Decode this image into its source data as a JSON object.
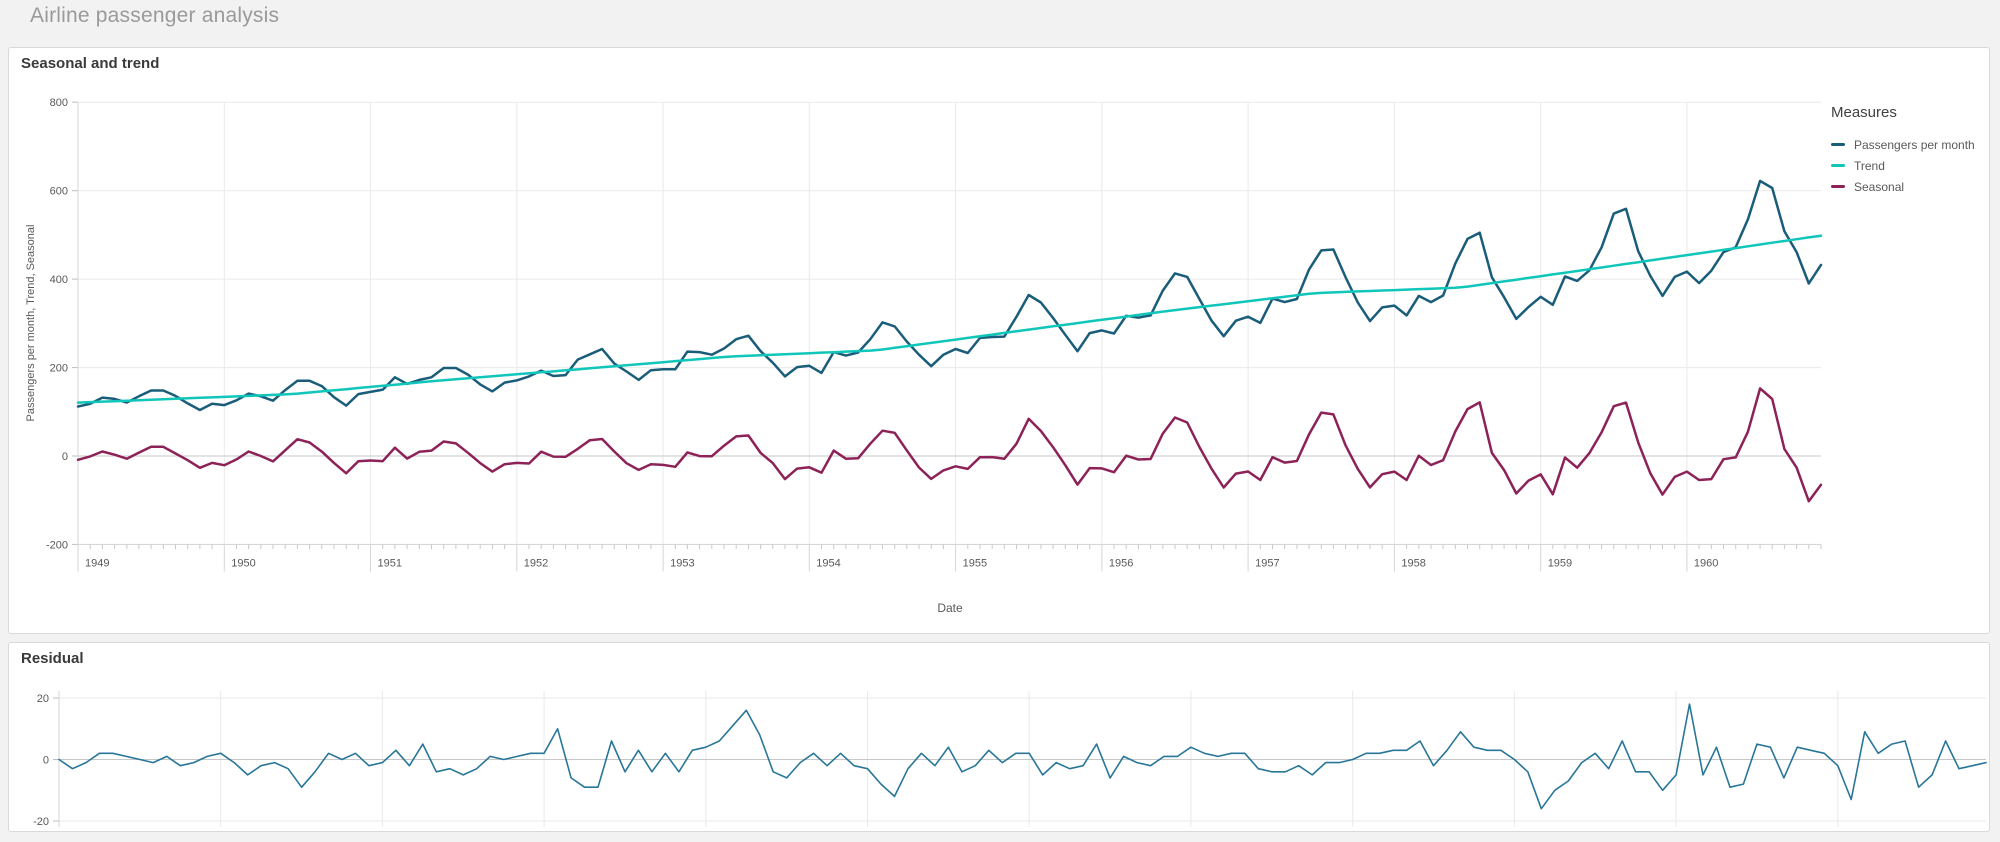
{
  "page": {
    "title": "Airline passenger analysis",
    "background": "#f2f2f2"
  },
  "chart_data": [
    {
      "type": "line",
      "title": "Seasonal and trend",
      "xlabel": "Date",
      "ylabel": "Passengers per month, Trend, Seasonal",
      "x_start": "1949-01",
      "x_end": "1960-12",
      "x_freq": "monthly",
      "x_tick_labels": [
        "1949",
        "1950",
        "1951",
        "1952",
        "1953",
        "1954",
        "1955",
        "1956",
        "1957",
        "1958",
        "1959",
        "1960"
      ],
      "y_ticks": [
        800,
        600,
        400,
        200,
        0,
        -200
      ],
      "ylim": [
        -200,
        800
      ],
      "grid": true,
      "legend": {
        "title": "Measures",
        "position": "right"
      },
      "series": [
        {
          "name": "Passengers per month",
          "color": "#1a5d7a",
          "values": [
            112,
            118,
            132,
            129,
            121,
            135,
            148,
            148,
            136,
            119,
            104,
            118,
            115,
            126,
            141,
            135,
            125,
            149,
            170,
            170,
            158,
            133,
            114,
            140,
            145,
            150,
            178,
            163,
            172,
            178,
            199,
            199,
            184,
            162,
            146,
            166,
            171,
            180,
            193,
            181,
            183,
            218,
            230,
            242,
            209,
            191,
            172,
            194,
            196,
            196,
            236,
            235,
            229,
            243,
            264,
            272,
            237,
            211,
            180,
            201,
            204,
            188,
            235,
            227,
            234,
            264,
            302,
            293,
            259,
            229,
            203,
            229,
            242,
            233,
            267,
            269,
            270,
            315,
            364,
            347,
            312,
            274,
            237,
            278,
            284,
            277,
            317,
            313,
            318,
            374,
            413,
            405,
            355,
            306,
            271,
            306,
            315,
            301,
            356,
            348,
            355,
            422,
            465,
            467,
            404,
            347,
            305,
            336,
            340,
            318,
            362,
            348,
            363,
            435,
            491,
            505,
            404,
            359,
            310,
            337,
            360,
            342,
            406,
            396,
            420,
            472,
            548,
            559,
            463,
            407,
            362,
            405,
            417,
            391,
            419,
            461,
            472,
            535,
            622,
            606,
            508,
            461,
            390,
            432
          ]
        },
        {
          "name": "Trend",
          "color": "#10c6ba",
          "values": [
            120.7,
            121.8,
            122.9,
            124.0,
            125.1,
            126.2,
            127.2,
            128.3,
            129.4,
            130.5,
            131.6,
            132.6,
            133.7,
            134.8,
            135.9,
            137.0,
            138.1,
            139.2,
            141.0,
            143.5,
            146.1,
            148.6,
            151.1,
            153.7,
            156.2,
            158.8,
            161.3,
            163.8,
            166.4,
            168.9,
            171.3,
            173.6,
            175.8,
            178.0,
            180.3,
            182.5,
            184.7,
            187.0,
            189.2,
            191.4,
            193.7,
            195.9,
            198.2,
            200.5,
            202.8,
            205.2,
            207.5,
            209.8,
            212.2,
            214.5,
            216.8,
            219.2,
            221.5,
            223.8,
            225.6,
            226.7,
            227.9,
            229.1,
            230.2,
            231.4,
            232.5,
            233.7,
            234.8,
            236.0,
            237.2,
            238.3,
            240.8,
            244.6,
            248.3,
            252.1,
            255.8,
            259.6,
            263.3,
            267.1,
            270.8,
            274.6,
            278.4,
            282.1,
            285.8,
            289.5,
            293.2,
            296.9,
            300.6,
            304.3,
            308.0,
            311.7,
            315.3,
            319.0,
            322.7,
            326.4,
            329.9,
            333.3,
            336.6,
            340.0,
            343.3,
            346.7,
            350.0,
            353.3,
            356.7,
            360.0,
            363.4,
            366.7,
            368.9,
            370.0,
            371.0,
            372.1,
            373.1,
            374.2,
            375.2,
            376.3,
            377.3,
            378.4,
            379.4,
            380.5,
            383.0,
            386.9,
            390.9,
            394.8,
            398.7,
            402.7,
            406.6,
            410.6,
            414.5,
            418.4,
            422.4,
            426.3,
            430.3,
            434.3,
            438.3,
            442.3,
            446.3,
            450.2,
            454.2,
            458.2,
            462.2,
            466.2,
            470.2,
            474.2,
            478.2,
            482.2,
            486.2,
            490.2,
            494.2,
            498.2
          ]
        },
        {
          "name": "Seasonal",
          "color": "#8c2257",
          "values": [
            -8.7,
            -0.8,
            10.1,
            3.0,
            -6.1,
            7.8,
            20.8,
            20.7,
            5.6,
            -9.5,
            -26.6,
            -15.6,
            -20.7,
            -7.8,
            10.1,
            0.0,
            -12.1,
            12.8,
            38.0,
            30.5,
            9.9,
            -15.6,
            -39.1,
            -11.7,
            -10.2,
            -11.8,
            18.7,
            -5.8,
            9.6,
            12.1,
            32.7,
            28.4,
            7.2,
            -16.0,
            -35.3,
            -18.5,
            -15.7,
            -17.0,
            9.8,
            -1.4,
            -1.7,
            16.1,
            35.8,
            38.5,
            10.2,
            -16.2,
            -31.5,
            -18.8,
            -20.2,
            -24.5,
            8.2,
            -0.2,
            -0.5,
            23.2,
            44.4,
            46.3,
            7.1,
            -16.1,
            -52.2,
            -28.4,
            -25.5,
            -37.7,
            12.2,
            -6.0,
            -5.2,
            27.7,
            57.2,
            52.4,
            12.7,
            -26.1,
            -51.8,
            -32.6,
            -23.3,
            -29.1,
            -2.8,
            -2.6,
            -6.4,
            27.9,
            84.2,
            56.5,
            19.8,
            -20.9,
            -64.6,
            -27.3,
            -28.0,
            -36.7,
            0.7,
            -8.0,
            -6.7,
            50.6,
            87.1,
            75.7,
            20.4,
            -29.0,
            -71.3,
            -39.7,
            -35.0,
            -54.3,
            -2.7,
            -15.0,
            -11.4,
            49.3,
            98.1,
            94.0,
            24.0,
            -29.1,
            -71.1,
            -41.2,
            -35.2,
            -54.3,
            0.7,
            -20.4,
            -9.4,
            55.5,
            106.0,
            121.1,
            7.1,
            -31.8,
            -84.7,
            -55.7,
            -41.6,
            -86.6,
            -3.5,
            -26.4,
            6.6,
            53.7,
            112.7,
            120.7,
            30.7,
            -39.3,
            -87.3,
            -47.2,
            -35.2,
            -54.2,
            -52.2,
            -7.2,
            -3.2,
            54.8,
            152.8,
            128.8,
            15.8,
            -26.2,
            -102.2,
            -65.2
          ]
        }
      ]
    },
    {
      "type": "line",
      "title": "Residual",
      "x_start": "1949-01",
      "x_end": "1960-12",
      "x_freq": "monthly",
      "x_tick_labels": [],
      "y_ticks": [
        20,
        0,
        -20
      ],
      "ylim": [
        -20,
        20
      ],
      "grid": true,
      "series": [
        {
          "name": "Residual",
          "color": "#287698",
          "values": [
            0,
            -3,
            -1,
            2,
            2,
            1,
            0,
            -1,
            1,
            -2,
            -1,
            1,
            2,
            -1,
            -5,
            -2,
            -1,
            -3,
            -9,
            -4,
            2,
            0,
            2,
            -2,
            -1,
            3,
            -2,
            5,
            -4,
            -3,
            -5,
            -3,
            1,
            0,
            1,
            2,
            2,
            10,
            -6,
            -9,
            -9,
            6,
            -4,
            3,
            -4,
            2,
            -4,
            3,
            4,
            6,
            11,
            16,
            8,
            -4,
            -6,
            -1,
            2,
            -2,
            2,
            -2,
            -3,
            -8,
            -12,
            -3,
            2,
            -2,
            4,
            -4,
            -2,
            3,
            -1,
            2,
            2,
            -5,
            -1,
            -3,
            -2,
            5,
            -6,
            1,
            -1,
            -2,
            1,
            1,
            4,
            2,
            1,
            2,
            2,
            -3,
            -4,
            -4,
            -2,
            -5,
            -1,
            -1,
            0,
            2,
            2,
            3,
            3,
            6,
            -2,
            3,
            9,
            4,
            3,
            3,
            0,
            -4,
            -16,
            -10,
            -7,
            -1,
            2,
            -3,
            6,
            -4,
            -4,
            -10,
            -5,
            18,
            -5,
            4,
            -9,
            -8,
            5,
            4,
            -6,
            4,
            3,
            2,
            -2,
            -13,
            9,
            2,
            5,
            6,
            -9,
            -5,
            6,
            -3,
            -2,
            -1
          ]
        }
      ]
    }
  ]
}
